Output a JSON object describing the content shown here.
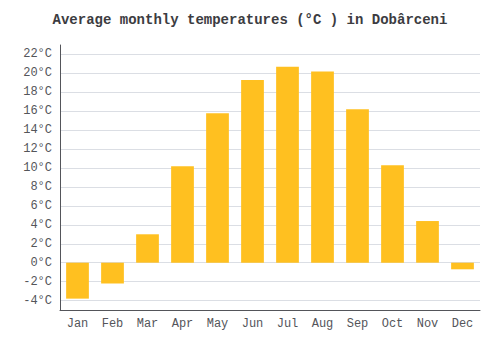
{
  "chart_data": {
    "type": "bar",
    "title": "Average monthly temperatures (°C ) in Dobârceni",
    "categories": [
      "Jan",
      "Feb",
      "Mar",
      "Apr",
      "May",
      "Jun",
      "Jul",
      "Aug",
      "Sep",
      "Oct",
      "Nov",
      "Dec"
    ],
    "values": [
      -3.8,
      -2.2,
      3.0,
      10.2,
      15.8,
      19.3,
      20.7,
      20.2,
      16.2,
      10.3,
      4.4,
      -0.7
    ],
    "color": "#FFC020",
    "ylim": [
      -5.0,
      23.0
    ],
    "yticks": [
      {
        "value": -4,
        "label": "-4°C"
      },
      {
        "value": -2,
        "label": "-2°C"
      },
      {
        "value": 0,
        "label": "0°C"
      },
      {
        "value": 2,
        "label": "2°C"
      },
      {
        "value": 4,
        "label": "4°C"
      },
      {
        "value": 6,
        "label": "6°C"
      },
      {
        "value": 8,
        "label": "8°C"
      },
      {
        "value": 10,
        "label": "10°C"
      },
      {
        "value": 12,
        "label": "12°C"
      },
      {
        "value": 14,
        "label": "14°C"
      },
      {
        "value": 16,
        "label": "16°C"
      },
      {
        "value": 18,
        "label": "18°C"
      },
      {
        "value": 20,
        "label": "20°C"
      },
      {
        "value": 22,
        "label": "22°C"
      }
    ],
    "grid": true
  }
}
